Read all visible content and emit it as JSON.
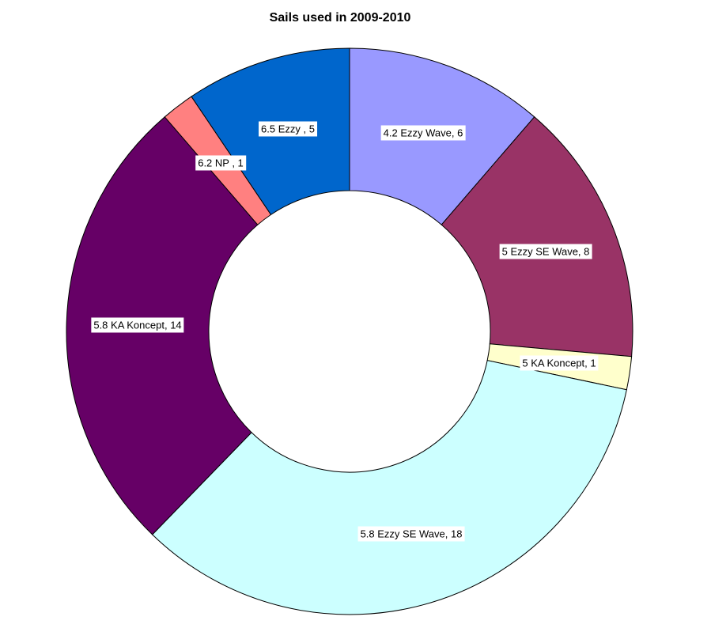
{
  "page": {
    "background_color": "#FFFFFF"
  },
  "chart_data": {
    "type": "pie",
    "subtype": "donut",
    "title": "Sails used in 2009-2010",
    "legend": "none",
    "grid": false,
    "start_angle_deg": 0,
    "direction": "clockwise",
    "inner_radius_ratio": 0.5,
    "total": 53,
    "stroke_color": "#000000",
    "label_background": "#FFFFFF",
    "segments": [
      {
        "label": "4.2 Ezzy Wave",
        "value": 6,
        "display": "4.2 Ezzy Wave, 6",
        "color": "#9999FF"
      },
      {
        "label": "5 Ezzy SE Wave",
        "value": 8,
        "display": "5 Ezzy SE Wave, 8",
        "color": "#993366"
      },
      {
        "label": "5 KA Koncept",
        "value": 1,
        "display": "5 KA Koncept, 1",
        "color": "#FFFFCC"
      },
      {
        "label": "5.8 Ezzy SE Wave",
        "value": 18,
        "display": "5.8 Ezzy SE Wave, 18",
        "color": "#CCFFFF"
      },
      {
        "label": "5.8 KA Koncept",
        "value": 14,
        "display": "5.8 KA Koncept, 14",
        "color": "#660066"
      },
      {
        "label": "6.2 NP",
        "value": 1,
        "display": "6.2 NP , 1",
        "color": "#FF8080"
      },
      {
        "label": "6.5 Ezzy",
        "value": 5,
        "display": "6.5 Ezzy , 5",
        "color": "#0066CC"
      }
    ]
  }
}
